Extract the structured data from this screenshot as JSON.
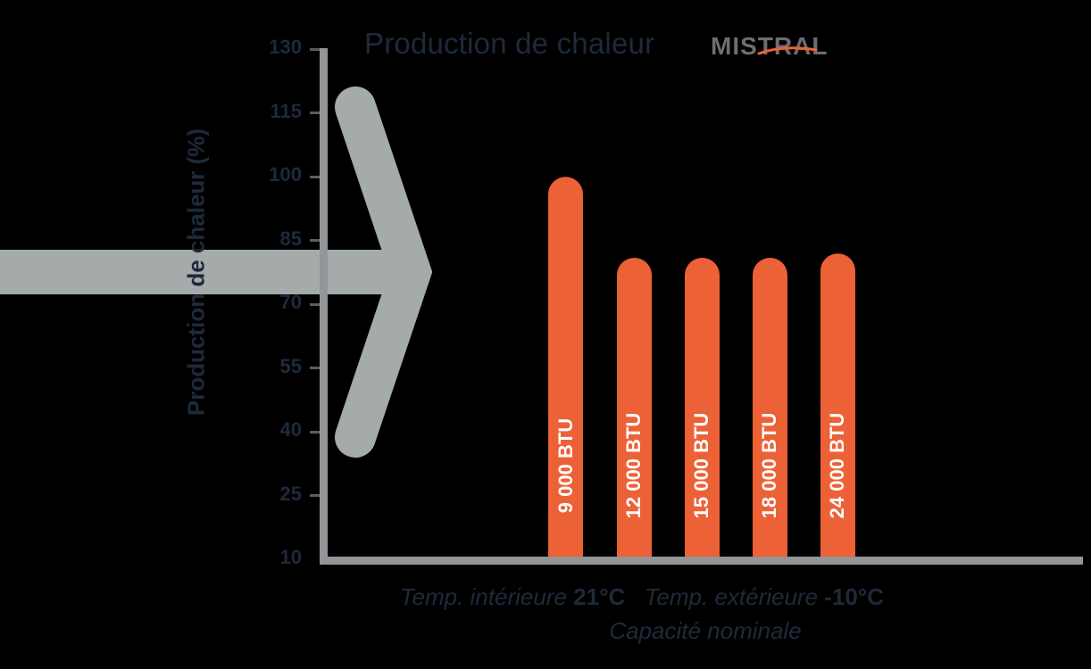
{
  "header": {
    "title": "Production de chaleur",
    "brand": "MISTRAL"
  },
  "axes": {
    "y_label": "Production de chaleur (%)",
    "y_ticks": [
      "130",
      "115",
      "100",
      "85",
      "70",
      "55",
      "40",
      "25",
      "10"
    ],
    "x_label_interior_prefix": "Temp. intérieure",
    "x_label_interior_value": "21°C",
    "x_label_exterior_prefix": "Temp. extérieure",
    "x_label_exterior_value": "-10°C",
    "x_label_line2": "Capacité nominale"
  },
  "bars": [
    {
      "label": "9 000 BTU",
      "value": 100
    },
    {
      "label": "12 000 BTU",
      "value": 81
    },
    {
      "label": "15 000 BTU",
      "value": 81
    },
    {
      "label": "18 000 BTU",
      "value": 81
    },
    {
      "label": "24 000 BTU",
      "value": 82
    }
  ],
  "colors": {
    "bar": "#EC6136",
    "axis": "#939598",
    "arrow": "#A5ABAA",
    "text": "#1E2A3A",
    "logo": "#6D6E71",
    "background": "#000000"
  },
  "chart_data": {
    "type": "bar",
    "title": "Production de chaleur MISTRAL",
    "categories": [
      "9 000 BTU",
      "12 000 BTU",
      "15 000 BTU",
      "18 000 BTU",
      "24 000 BTU"
    ],
    "values": [
      100,
      81,
      81,
      81,
      82
    ],
    "xlabel": "Temp. intérieure 21°C   Temp. extérieure -10°C — Capacité nominale",
    "ylabel": "Production de chaleur (%)",
    "ylim": [
      10,
      130
    ],
    "yticks": [
      10,
      25,
      40,
      55,
      70,
      85,
      100,
      115,
      130
    ],
    "grid": false,
    "legend": null,
    "annotations": [
      "Decorative gray arrow pointing right at ~78%"
    ]
  }
}
